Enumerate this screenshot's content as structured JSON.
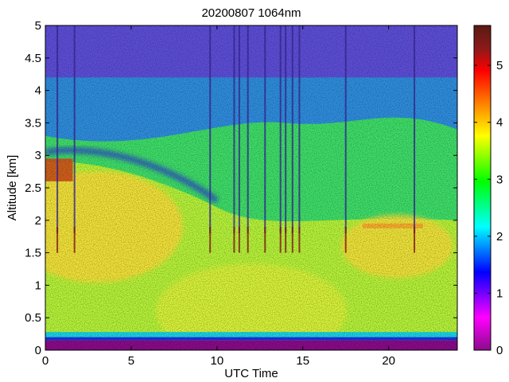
{
  "chart_data": {
    "type": "heatmap",
    "title": "20200807 1064nm",
    "xlabel": "UTC Time",
    "ylabel": "Altitude [km]",
    "xlim": [
      0,
      24
    ],
    "ylim": [
      0,
      5
    ],
    "x_ticks": [
      0,
      5,
      10,
      15,
      20
    ],
    "y_ticks": [
      0,
      0.5,
      1,
      1.5,
      2,
      2.5,
      3,
      3.5,
      4,
      4.5,
      5
    ],
    "colorbar": {
      "range": [
        0,
        5.7
      ],
      "ticks": [
        0,
        1,
        2,
        3,
        4,
        5
      ],
      "colors": [
        "#8b0b8b",
        "#ff00ff",
        "#7f00ff",
        "#0000ff",
        "#0080ff",
        "#00ffff",
        "#00ff80",
        "#00ff00",
        "#80ff00",
        "#ffff00",
        "#ff8000",
        "#ff0000",
        "#8b1a1a",
        "#5a1a12"
      ],
      "color_stops": [
        0.0,
        0.1,
        0.17,
        0.24,
        0.31,
        0.38,
        0.45,
        0.52,
        0.59,
        0.66,
        0.76,
        0.86,
        0.93,
        1.0
      ]
    },
    "grid": false
  }
}
